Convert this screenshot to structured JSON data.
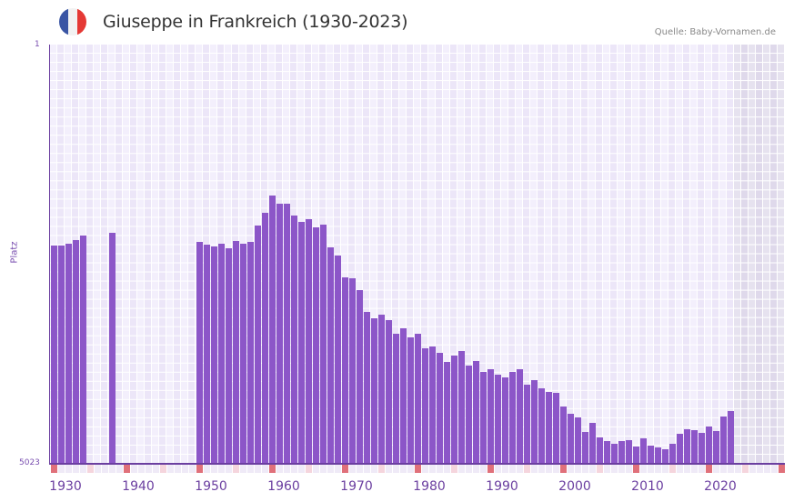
{
  "header": {
    "title": "Giuseppe in Frankreich (1930-2023)",
    "source": "Quelle: Baby-Vornamen.de",
    "flag_colors": [
      "#3a55a4",
      "#f2f2f2",
      "#e53935"
    ]
  },
  "axis": {
    "y_top_label": "1",
    "y_bottom_label": "5023",
    "y_title": "Platz",
    "x_labels": [
      "1930",
      "1940",
      "1950",
      "1960",
      "1970",
      "1980",
      "1990",
      "2000",
      "2010",
      "2020"
    ]
  },
  "colors": {
    "bar": "#8c56c8",
    "axis": "#6b3fa0",
    "grid_a": "#f3effc",
    "grid_b": "#ece6f8",
    "future_a": "#e6e2ef",
    "future_b": "#dfd9eb",
    "tick_decade": "#e0707a",
    "tick_mid": "#f5d5dd",
    "tick_other": "#efeaf7"
  },
  "chart_data": {
    "type": "bar",
    "title": "Giuseppe in Frankreich (1930-2023)",
    "xlabel": "",
    "ylabel": "Platz",
    "y_inverted": true,
    "ylim": [
      1,
      5023
    ],
    "xlim": [
      1930,
      2030
    ],
    "grid": true,
    "legend": null,
    "source": "Quelle: Baby-Vornamen.de",
    "x": [
      1930,
      1931,
      1932,
      1933,
      1934,
      1938,
      1950,
      1951,
      1952,
      1953,
      1954,
      1955,
      1956,
      1957,
      1958,
      1959,
      1960,
      1961,
      1962,
      1963,
      1964,
      1965,
      1966,
      1967,
      1968,
      1969,
      1970,
      1971,
      1972,
      1973,
      1974,
      1975,
      1976,
      1977,
      1978,
      1979,
      1980,
      1981,
      1982,
      1983,
      1984,
      1985,
      1986,
      1987,
      1988,
      1989,
      1990,
      1991,
      1992,
      1993,
      1994,
      1995,
      1996,
      1997,
      1998,
      1999,
      2000,
      2001,
      2002,
      2003,
      2004,
      2005,
      2006,
      2007,
      2008,
      2009,
      2010,
      2011,
      2012,
      2013,
      2014,
      2015,
      2016,
      2017,
      2018,
      2019,
      2020,
      2021,
      2022,
      2023
    ],
    "values": [
      2410,
      2410,
      2390,
      2340,
      2290,
      2260,
      2370,
      2400,
      2420,
      2390,
      2440,
      2350,
      2390,
      2370,
      2170,
      2020,
      1810,
      1910,
      1910,
      2050,
      2130,
      2090,
      2190,
      2160,
      2430,
      2530,
      2790,
      2800,
      2940,
      3200,
      3280,
      3240,
      3300,
      3470,
      3400,
      3510,
      3470,
      3640,
      3620,
      3690,
      3800,
      3730,
      3670,
      3850,
      3790,
      3920,
      3890,
      3960,
      3990,
      3920,
      3890,
      4080,
      4020,
      4120,
      4160,
      4170,
      4340,
      4420,
      4470,
      4640,
      4530,
      4710,
      4750,
      4780,
      4750,
      4740,
      4820,
      4720,
      4810,
      4830,
      4850,
      4780,
      4660,
      4610,
      4620,
      4650,
      4580,
      4630,
      4460,
      4390
    ]
  }
}
